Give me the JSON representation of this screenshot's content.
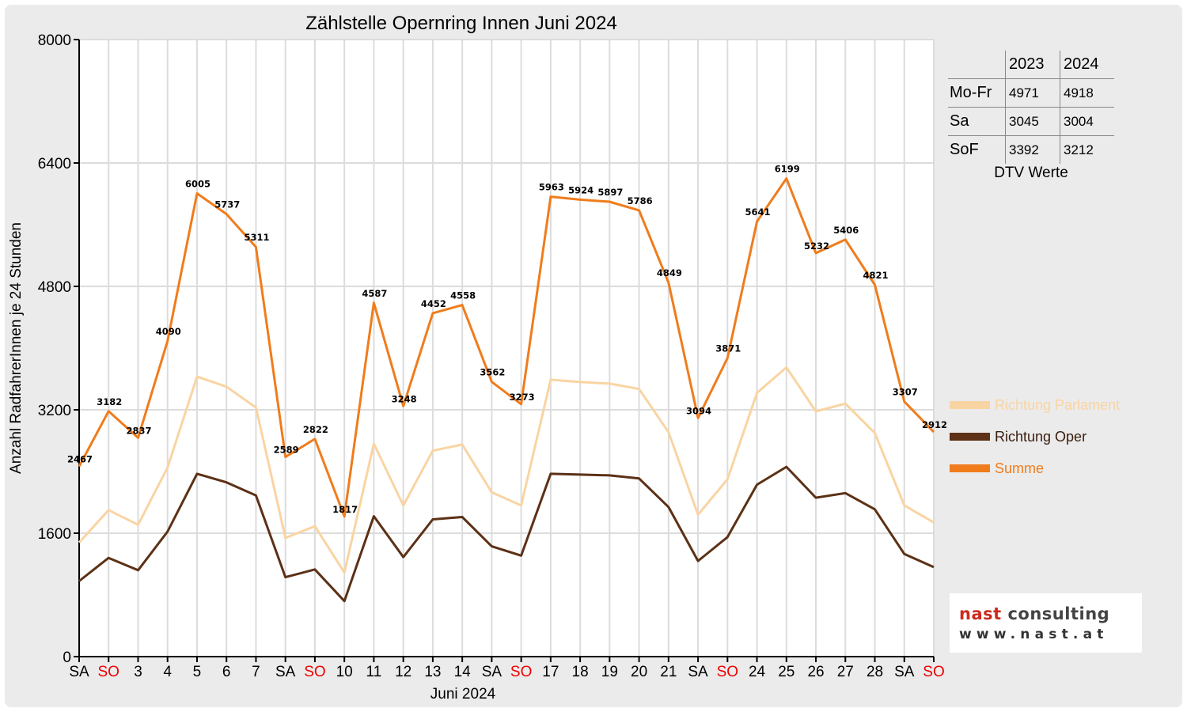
{
  "chart_data": {
    "type": "line",
    "title": "Zählstelle Opernring Innen Juni 2024",
    "xlabel": "Juni 2024",
    "ylabel": "Anzahl RadfahrerInnen je 24 Stunden",
    "ylim": [
      0,
      8000
    ],
    "yticks": [
      0,
      1600,
      3200,
      4800,
      6400,
      8000
    ],
    "grid": true,
    "legend_position": "right",
    "categories": [
      "SA",
      "SO",
      "3",
      "4",
      "5",
      "6",
      "7",
      "SA",
      "SO",
      "10",
      "11",
      "12",
      "13",
      "14",
      "SA",
      "SO",
      "17",
      "18",
      "19",
      "20",
      "21",
      "SA",
      "SO",
      "24",
      "25",
      "26",
      "27",
      "28",
      "SA",
      "SO"
    ],
    "weekend_color": "#ee0000",
    "weekend_indices": [
      1,
      8,
      15,
      22,
      29
    ],
    "series": [
      {
        "name": "Richtung Parlament",
        "color": "#f9d4a3",
        "values": [
          1480,
          1900,
          1710,
          2450,
          3630,
          3500,
          3230,
          1540,
          1690,
          1090,
          2760,
          1960,
          2670,
          2750,
          2130,
          1960,
          3590,
          3560,
          3540,
          3470,
          2910,
          1840,
          2300,
          3420,
          3750,
          3180,
          3280,
          2900,
          1960,
          1740
        ]
      },
      {
        "name": "Richtung Oper",
        "color": "#5c3116",
        "values": [
          980,
          1280,
          1120,
          1620,
          2370,
          2260,
          2090,
          1030,
          1130,
          720,
          1820,
          1290,
          1780,
          1810,
          1430,
          1310,
          2370,
          2360,
          2350,
          2310,
          1940,
          1240,
          1550,
          2230,
          2460,
          2060,
          2120,
          1910,
          1330,
          1160
        ]
      },
      {
        "name": "Summe",
        "color": "#f07c1c",
        "values": [
          2467,
          3182,
          2837,
          4090,
          6005,
          5737,
          5311,
          2589,
          2822,
          1817,
          4587,
          3248,
          4452,
          4558,
          3562,
          3273,
          5963,
          5924,
          5897,
          5786,
          4849,
          3094,
          3871,
          5641,
          6199,
          5232,
          5406,
          4821,
          3307,
          2912
        ],
        "data_labels": [
          2467,
          3182,
          2837,
          4090,
          6005,
          5737,
          5311,
          2589,
          2822,
          1817,
          4587,
          3248,
          4452,
          4558,
          3562,
          3273,
          5963,
          5924,
          5897,
          5786,
          4849,
          3094,
          3871,
          5641,
          6199,
          5232,
          5406,
          4821,
          3307,
          2912
        ]
      }
    ]
  },
  "dtv_table": {
    "columns": [
      "2023",
      "2024"
    ],
    "rows": [
      {
        "label": "Mo-Fr",
        "v2023": "4971",
        "v2024": "4918"
      },
      {
        "label": "Sa",
        "v2023": "3045",
        "v2024": "3004"
      },
      {
        "label": "SoF",
        "v2023": "3392",
        "v2024": "3212"
      }
    ],
    "caption": "DTV Werte"
  },
  "logo": {
    "name_part1": "nast",
    "name_part2": " consulting",
    "url": "www.nast.at",
    "accent_color": "#cc2a1e"
  }
}
